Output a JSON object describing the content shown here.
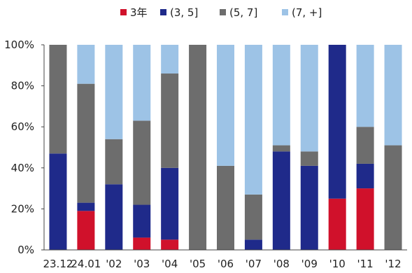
{
  "chart_data": {
    "type": "bar",
    "stacked": true,
    "categories": [
      "23.12",
      "24.01",
      "'02",
      "'03",
      "'04",
      "'05",
      "'06",
      "'07",
      "'08",
      "'09",
      "'10",
      "'11",
      "'12"
    ],
    "series": [
      {
        "name": "3年",
        "color": "#d0112b",
        "values": [
          0,
          19,
          0,
          6,
          5,
          0,
          0,
          0,
          0,
          0,
          25,
          30,
          0
        ]
      },
      {
        "name": "(3, 5]",
        "color": "#1f2a8a",
        "values": [
          47,
          4,
          32,
          16,
          35,
          0,
          0,
          5,
          48,
          41,
          75,
          12,
          0
        ]
      },
      {
        "name": "(5, 7]",
        "color": "#6d6d6d",
        "values": [
          53,
          58,
          22,
          41,
          46,
          100,
          41,
          22,
          3,
          7,
          0,
          18,
          51
        ]
      },
      {
        "name": "(7, +]",
        "color": "#9dc3e6",
        "values": [
          0,
          19,
          46,
          37,
          14,
          0,
          59,
          73,
          49,
          52,
          0,
          40,
          49
        ]
      }
    ],
    "y_ticks": [
      "0%",
      "20%",
      "40%",
      "60%",
      "80%",
      "100%"
    ],
    "ylim": [
      0,
      100
    ],
    "legend_position": "top",
    "grid": false,
    "title": "",
    "xlabel": "",
    "ylabel": ""
  }
}
